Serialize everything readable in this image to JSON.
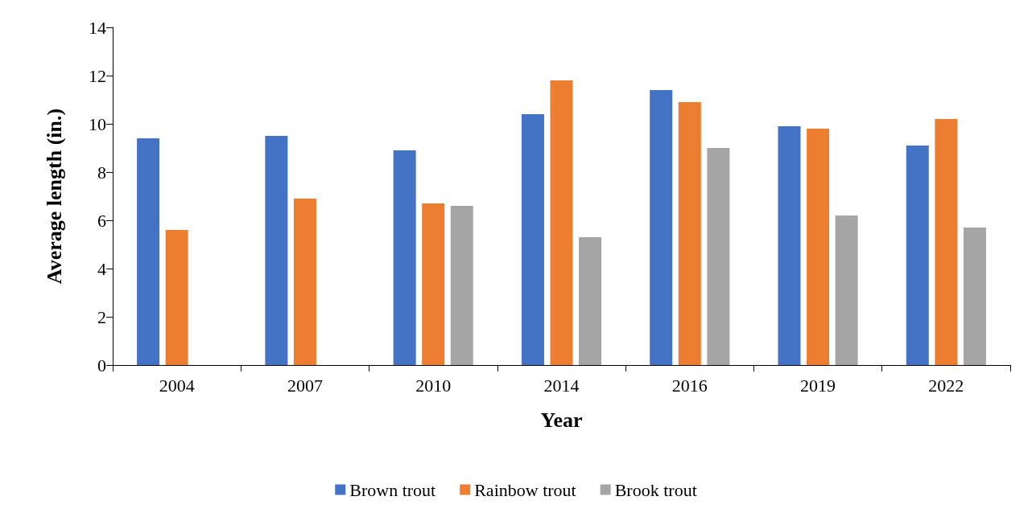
{
  "chart_data": {
    "type": "bar",
    "xlabel": "Year",
    "ylabel": "Average length (in.)",
    "categories": [
      "2004",
      "2007",
      "2010",
      "2014",
      "2016",
      "2019",
      "2022"
    ],
    "series": [
      {
        "name": "Brown trout",
        "color": "#4472c4",
        "values": [
          9.4,
          9.5,
          8.9,
          10.4,
          11.4,
          9.9,
          9.1
        ]
      },
      {
        "name": "Rainbow trout",
        "color": "#ed7d31",
        "values": [
          5.6,
          6.9,
          6.7,
          11.8,
          10.9,
          9.8,
          10.2
        ]
      },
      {
        "name": "Brook trout",
        "color": "#a5a5a5",
        "values": [
          null,
          null,
          6.6,
          5.3,
          9.0,
          6.2,
          5.7
        ]
      }
    ],
    "ylim": [
      0,
      14
    ],
    "yticks": [
      0,
      2,
      4,
      6,
      8,
      10,
      12,
      14
    ],
    "grid": false,
    "legend": "bottom"
  }
}
